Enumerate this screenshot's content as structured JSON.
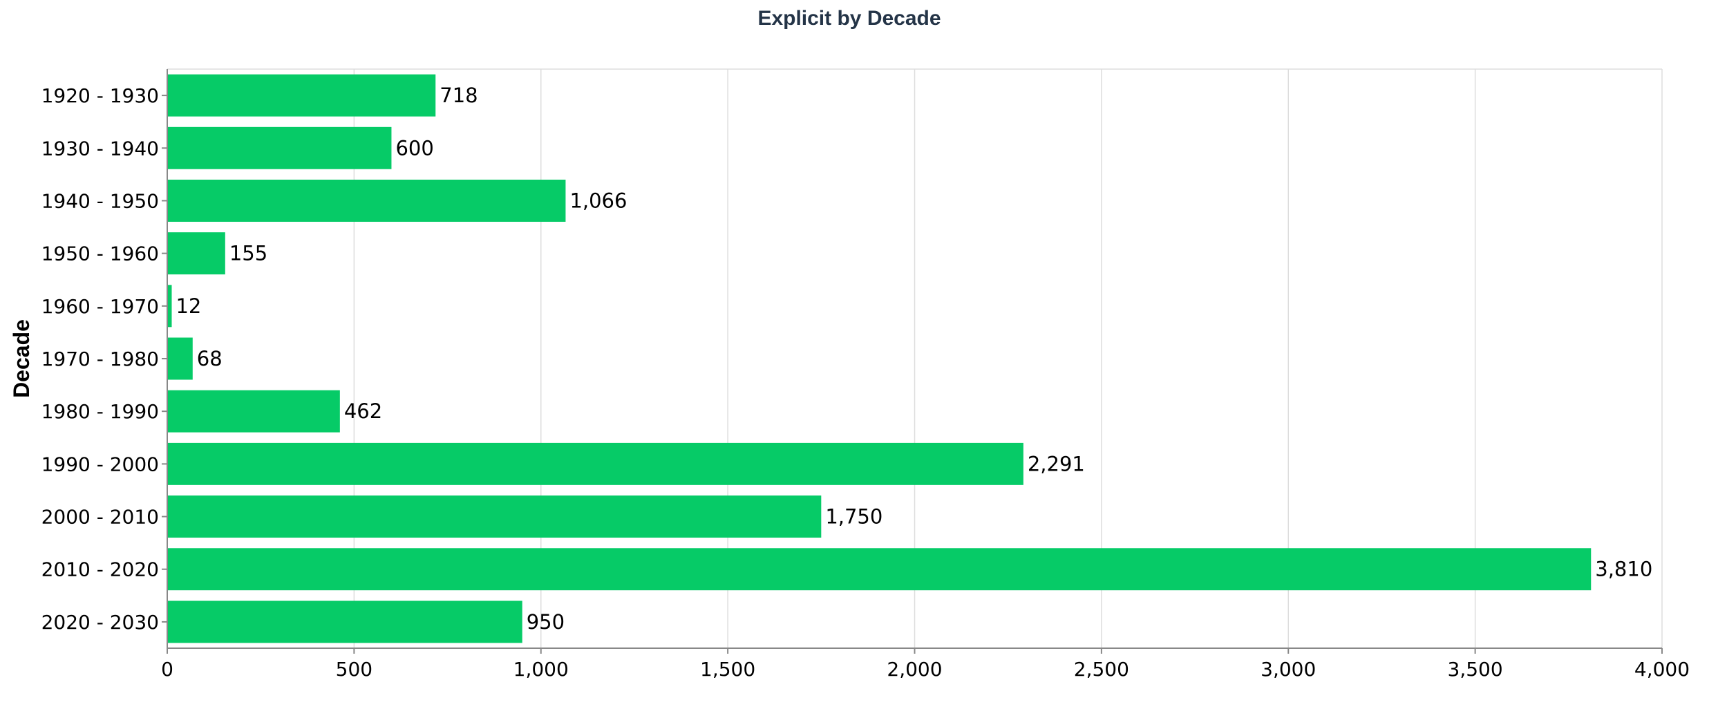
{
  "chart_data": {
    "type": "bar",
    "orientation": "horizontal",
    "title": "Explicit by Decade",
    "xlabel": "",
    "ylabel": "Decade",
    "categories": [
      "1920 - 1930",
      "1930 - 1940",
      "1940 - 1950",
      "1950 - 1960",
      "1960 - 1970",
      "1970 - 1980",
      "1980 - 1990",
      "1990 - 2000",
      "2000 - 2010",
      "2010 - 2020",
      "2020 - 2030"
    ],
    "values": [
      718,
      600,
      1066,
      155,
      12,
      68,
      462,
      2291,
      1750,
      3810,
      950
    ],
    "value_labels": [
      "718",
      "600",
      "1,066",
      "155",
      "12",
      "68",
      "462",
      "2,291",
      "1,750",
      "3,810",
      "950"
    ],
    "xlim": [
      0,
      4000
    ],
    "xticks": [
      0,
      500,
      1000,
      1500,
      2000,
      2500,
      3000,
      3500,
      4000
    ],
    "xtick_labels": [
      "0",
      "500",
      "1,000",
      "1,500",
      "2,000",
      "2,500",
      "3,000",
      "3,500",
      "4,000"
    ],
    "grid": true,
    "colors": {
      "bar": "#06cb67",
      "grid": "#dddddd",
      "axis": "#888888"
    }
  }
}
